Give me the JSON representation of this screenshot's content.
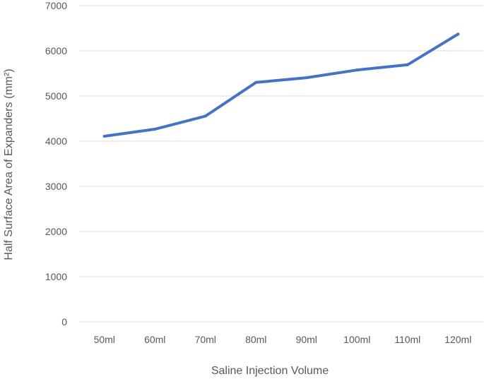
{
  "chart_data": {
    "type": "line",
    "categories": [
      "50ml",
      "60ml",
      "70ml",
      "80ml",
      "90ml",
      "100ml",
      "110ml",
      "120ml"
    ],
    "series": [
      {
        "values": [
          4110,
          4265,
          4555,
          5300,
          5405,
          5575,
          5690,
          6370
        ]
      }
    ],
    "ylim": [
      0,
      7000
    ],
    "yticks": [
      "0",
      "1000",
      "2000",
      "3000",
      "4000",
      "5000",
      "6000",
      "7000"
    ],
    "xlabel": "Saline Injection Volume",
    "ylabel": "Half Surface Area of Expanders (mm²)",
    "grid": "horizontal",
    "legend": "none",
    "colors": {
      "series": "#4472c4",
      "grid": "#d9d9d9",
      "text": "#595959"
    }
  }
}
